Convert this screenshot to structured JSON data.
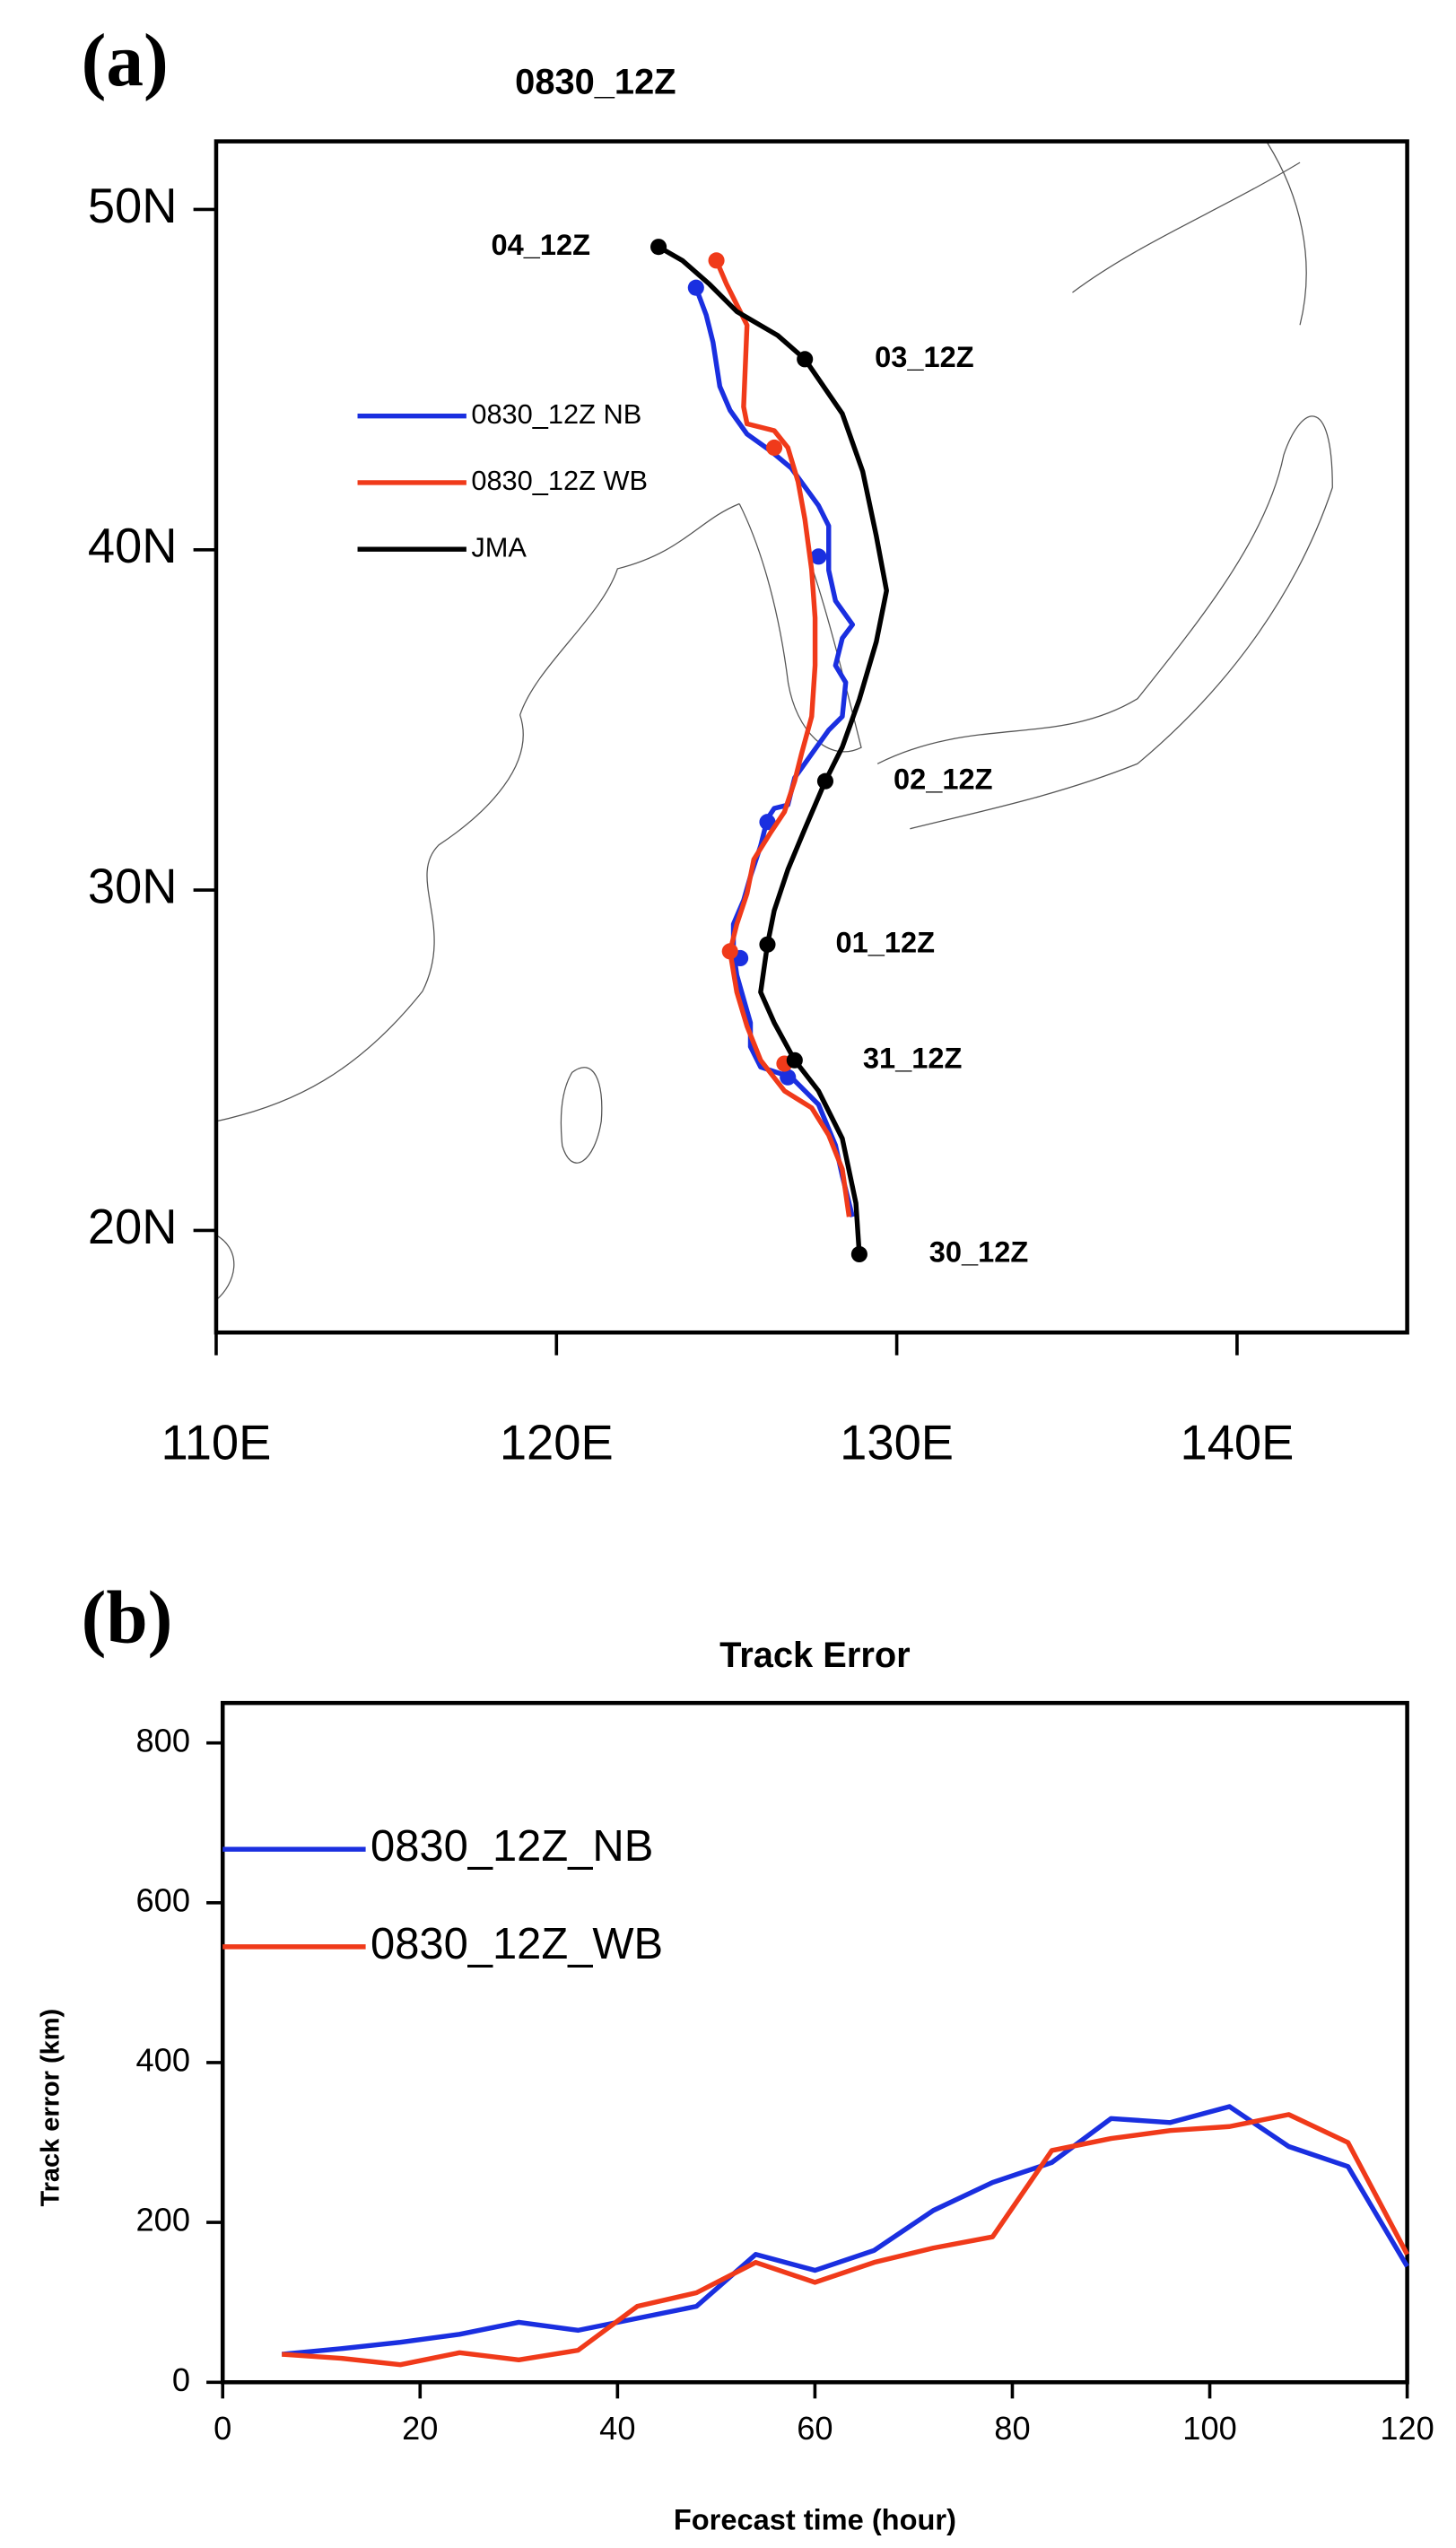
{
  "chart_data": [
    {
      "type": "line",
      "panel": "(a)",
      "title": "0830_12Z",
      "xlim": [
        110,
        145
      ],
      "ylim": [
        17,
        52
      ],
      "xticks": [
        {
          "value": 110,
          "label": "110E"
        },
        {
          "value": 120,
          "label": "120E"
        },
        {
          "value": 130,
          "label": "130E"
        },
        {
          "value": 140,
          "label": "140E"
        }
      ],
      "yticks": [
        {
          "value": 20,
          "label": "20N"
        },
        {
          "value": 30,
          "label": "30N"
        },
        {
          "value": 40,
          "label": "40N"
        },
        {
          "value": 50,
          "label": "50N"
        }
      ],
      "series": [
        {
          "name": "0830_12Z NB",
          "color": "#1a2fe0",
          "x": [
            128.7,
            128.4,
            128.2,
            127.7,
            126.9,
            126.0,
            125.7,
            125.7,
            125.5,
            125.3,
            125.2,
            125.2,
            125.5,
            125.7,
            126.0,
            126.2,
            126.4,
            126.8,
            127.0,
            127.5,
            128.0,
            128.4,
            128.5,
            128.2,
            128.4,
            128.7,
            128.2,
            128.0,
            128.0,
            127.7,
            126.9,
            126.3,
            125.6,
            125.1,
            124.8,
            124.6,
            124.4,
            124.1
          ],
          "values": [
            20.4,
            21.6,
            22.5,
            23.7,
            24.5,
            24.8,
            25.4,
            26.1,
            26.8,
            27.5,
            28.2,
            29.0,
            29.7,
            30.4,
            31.3,
            32.1,
            32.4,
            32.5,
            33.3,
            34.0,
            34.7,
            35.1,
            36.1,
            36.6,
            37.4,
            37.8,
            38.5,
            39.4,
            40.7,
            41.3,
            42.4,
            42.9,
            43.4,
            44.1,
            44.8,
            46.1,
            46.9,
            47.7
          ],
          "marker_lon": [
            126.8,
            125.4,
            126.2,
            127.7,
            124.1
          ],
          "marker_lat": [
            24.5,
            28.0,
            32.0,
            39.8,
            47.7
          ]
        },
        {
          "name": "0830_12Z WB",
          "color": "#f03a1a",
          "x": [
            128.6,
            128.4,
            128.0,
            127.5,
            126.7,
            126.0,
            125.6,
            125.3,
            125.1,
            125.3,
            125.6,
            125.8,
            126.3,
            126.7,
            127.0,
            127.2,
            127.5,
            127.6,
            127.6,
            127.5,
            127.3,
            127.1,
            126.8,
            126.4,
            125.6,
            125.5,
            125.6,
            125.0,
            124.7
          ],
          "values": [
            20.4,
            21.8,
            22.8,
            23.6,
            24.1,
            25.0,
            26.0,
            27.0,
            28.2,
            29.0,
            29.9,
            30.9,
            31.7,
            32.3,
            33.2,
            34.0,
            35.1,
            36.6,
            38.0,
            39.4,
            40.9,
            42.0,
            43.0,
            43.5,
            43.7,
            44.2,
            46.6,
            47.8,
            48.5
          ],
          "marker_lon": [
            126.7,
            125.1,
            126.4,
            124.7
          ],
          "marker_lat": [
            24.9,
            28.2,
            43.0,
            48.5
          ]
        },
        {
          "name": "JMA",
          "color": "#000000",
          "x": [
            128.9,
            128.8,
            128.4,
            127.7,
            127.0,
            126.4,
            126.0,
            126.2,
            126.4,
            126.8,
            127.3,
            127.9,
            128.4,
            128.9,
            129.4,
            129.7,
            129.4,
            129.0,
            128.4,
            127.3,
            126.5,
            125.3,
            124.5,
            123.7,
            123.0
          ],
          "values": [
            19.3,
            20.8,
            22.7,
            24.1,
            25.0,
            26.1,
            27.0,
            28.4,
            29.4,
            30.6,
            31.8,
            33.2,
            34.2,
            35.6,
            37.3,
            38.8,
            40.4,
            42.3,
            44.0,
            45.6,
            46.3,
            47.0,
            47.8,
            48.5,
            48.9
          ],
          "marker_lon": [
            128.9,
            127.0,
            126.2,
            127.9,
            127.3,
            123.0
          ],
          "marker_lat": [
            19.3,
            25.0,
            28.4,
            33.2,
            45.6,
            48.9
          ],
          "marker_labels": [
            "30_12Z",
            "31_12Z",
            "01_12Z",
            "02_12Z",
            "03_12Z",
            "04_12Z"
          ]
        }
      ]
    },
    {
      "type": "line",
      "panel": "(b)",
      "title": "Track Error",
      "x_label": "Forecast time (hour)",
      "y_label": "Track error (km)",
      "xlim": [
        0,
        120
      ],
      "ylim": [
        0,
        850
      ],
      "xticks": [
        0,
        20,
        40,
        60,
        80,
        100,
        120
      ],
      "yticks": [
        0,
        200,
        400,
        600,
        800
      ],
      "x": [
        6,
        12,
        18,
        24,
        30,
        36,
        42,
        48,
        54,
        60,
        66,
        72,
        78,
        84,
        90,
        96,
        102,
        108,
        114,
        120
      ],
      "series": [
        {
          "name": "0830_12Z_NB",
          "color": "#1a2fe0",
          "values": [
            35,
            42,
            50,
            60,
            75,
            65,
            80,
            95,
            160,
            140,
            165,
            215,
            250,
            275,
            330,
            325,
            345,
            295,
            270,
            145
          ]
        },
        {
          "name": "0830_12Z_WB",
          "color": "#f03a1a",
          "values": [
            35,
            30,
            22,
            37,
            28,
            40,
            95,
            112,
            150,
            125,
            150,
            168,
            182,
            290,
            305,
            315,
            320,
            335,
            300,
            160
          ]
        }
      ]
    }
  ]
}
